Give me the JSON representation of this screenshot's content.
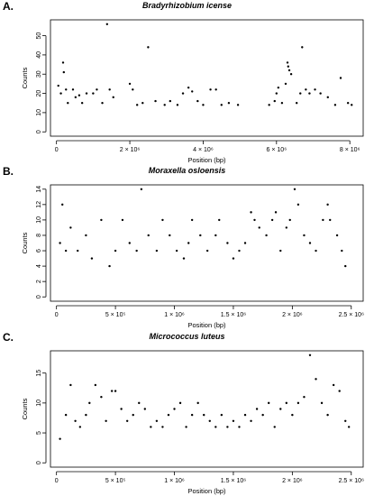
{
  "chart_data": [
    {
      "type": "scatter",
      "panel_label": "A.",
      "title": "Bradyrhizobium icense",
      "xlabel": "Position (bp)",
      "ylabel": "Counts",
      "xlim": [
        0,
        8200000
      ],
      "ylim": [
        0,
        56
      ],
      "x_ticks": [
        0,
        2000000,
        4000000,
        6000000,
        8000000
      ],
      "x_tick_labels": [
        "0",
        "2 × 10⁶",
        "4 × 10⁶",
        "6 × 10⁶",
        "8 × 10⁶"
      ],
      "y_ticks": [
        0,
        10,
        20,
        30,
        40,
        50
      ],
      "y_tick_labels": [
        "0",
        "10",
        "20",
        "30",
        "40",
        "50"
      ],
      "marker_color": "#000000",
      "grid": false,
      "points": [
        [
          50000,
          24
        ],
        [
          120000,
          20
        ],
        [
          180000,
          36
        ],
        [
          200000,
          31
        ],
        [
          260000,
          22
        ],
        [
          310000,
          15
        ],
        [
          450000,
          22
        ],
        [
          520000,
          18
        ],
        [
          620000,
          19
        ],
        [
          700000,
          15
        ],
        [
          820000,
          20
        ],
        [
          1000000,
          20
        ],
        [
          1100000,
          22
        ],
        [
          1250000,
          15
        ],
        [
          1380000,
          56
        ],
        [
          1450000,
          22
        ],
        [
          1550000,
          18
        ],
        [
          2000000,
          25
        ],
        [
          2080000,
          22
        ],
        [
          2200000,
          14
        ],
        [
          2350000,
          15
        ],
        [
          2500000,
          44
        ],
        [
          2700000,
          16
        ],
        [
          2950000,
          14
        ],
        [
          3100000,
          16
        ],
        [
          3300000,
          14
        ],
        [
          3450000,
          20
        ],
        [
          3600000,
          23
        ],
        [
          3700000,
          21
        ],
        [
          3850000,
          16
        ],
        [
          4000000,
          14
        ],
        [
          4200000,
          22
        ],
        [
          4350000,
          22
        ],
        [
          4500000,
          14
        ],
        [
          4700000,
          15
        ],
        [
          4950000,
          14
        ],
        [
          5800000,
          14
        ],
        [
          5950000,
          16
        ],
        [
          6000000,
          20
        ],
        [
          6050000,
          23
        ],
        [
          6150000,
          15
        ],
        [
          6250000,
          25
        ],
        [
          6300000,
          36
        ],
        [
          6320000,
          34
        ],
        [
          6350000,
          32
        ],
        [
          6400000,
          30
        ],
        [
          6550000,
          15
        ],
        [
          6650000,
          20
        ],
        [
          6700000,
          44
        ],
        [
          6800000,
          22
        ],
        [
          6900000,
          20
        ],
        [
          7050000,
          22
        ],
        [
          7200000,
          20
        ],
        [
          7400000,
          18
        ],
        [
          7600000,
          14
        ],
        [
          7750000,
          28
        ],
        [
          7950000,
          15
        ],
        [
          8050000,
          14
        ]
      ]
    },
    {
      "type": "scatter",
      "panel_label": "B.",
      "title": "Moraxella osloensis",
      "xlabel": "Position (bp)",
      "ylabel": "Counts",
      "xlim": [
        0,
        2550000
      ],
      "ylim": [
        0,
        14
      ],
      "x_ticks": [
        0,
        500000,
        1000000,
        1500000,
        2000000,
        2500000
      ],
      "x_tick_labels": [
        "0",
        "5 × 10⁵",
        "1 × 10⁶",
        "1.5 × 10⁶",
        "2 × 10⁶",
        "2.5 × 10⁶"
      ],
      "y_ticks": [
        0,
        2,
        4,
        6,
        8,
        10,
        12,
        14
      ],
      "y_tick_labels": [
        "0",
        "2",
        "4",
        "6",
        "8",
        "10",
        "12",
        "14"
      ],
      "marker_color": "#000000",
      "grid": false,
      "points": [
        [
          30000,
          7
        ],
        [
          50000,
          12
        ],
        [
          80000,
          6
        ],
        [
          120000,
          9
        ],
        [
          180000,
          6
        ],
        [
          250000,
          8
        ],
        [
          300000,
          5
        ],
        [
          380000,
          10
        ],
        [
          450000,
          4
        ],
        [
          500000,
          6
        ],
        [
          560000,
          10
        ],
        [
          620000,
          7
        ],
        [
          680000,
          6
        ],
        [
          720000,
          14
        ],
        [
          780000,
          8
        ],
        [
          850000,
          6
        ],
        [
          900000,
          10
        ],
        [
          960000,
          8
        ],
        [
          1020000,
          6
        ],
        [
          1080000,
          5
        ],
        [
          1120000,
          7
        ],
        [
          1150000,
          10
        ],
        [
          1220000,
          8
        ],
        [
          1280000,
          6
        ],
        [
          1350000,
          8
        ],
        [
          1380000,
          10
        ],
        [
          1450000,
          7
        ],
        [
          1500000,
          5
        ],
        [
          1550000,
          6
        ],
        [
          1600000,
          7
        ],
        [
          1650000,
          11
        ],
        [
          1680000,
          10
        ],
        [
          1720000,
          9
        ],
        [
          1780000,
          8
        ],
        [
          1830000,
          10
        ],
        [
          1860000,
          11
        ],
        [
          1900000,
          6
        ],
        [
          1950000,
          9
        ],
        [
          1980000,
          10
        ],
        [
          2020000,
          14
        ],
        [
          2050000,
          12
        ],
        [
          2100000,
          8
        ],
        [
          2150000,
          7
        ],
        [
          2200000,
          6
        ],
        [
          2260000,
          10
        ],
        [
          2300000,
          12
        ],
        [
          2320000,
          10
        ],
        [
          2380000,
          8
        ],
        [
          2420000,
          6
        ],
        [
          2450000,
          4
        ]
      ]
    },
    {
      "type": "scatter",
      "panel_label": "C.",
      "title": "Micrococcus luteus",
      "xlabel": "Position (bp)",
      "ylabel": "Counts",
      "xlim": [
        0,
        2550000
      ],
      "ylim": [
        0,
        18
      ],
      "x_ticks": [
        0,
        500000,
        1000000,
        1500000,
        2000000,
        2500000
      ],
      "x_tick_labels": [
        "0",
        "5 × 10⁵",
        "1 × 10⁶",
        "1.5 × 10⁶",
        "2 × 10⁶",
        "2.5 × 10⁶"
      ],
      "y_ticks": [
        0,
        5,
        10,
        15
      ],
      "y_tick_labels": [
        "0",
        "5",
        "10",
        "15"
      ],
      "marker_color": "#000000",
      "grid": false,
      "points": [
        [
          30000,
          4
        ],
        [
          80000,
          8
        ],
        [
          120000,
          13
        ],
        [
          160000,
          7
        ],
        [
          200000,
          6
        ],
        [
          250000,
          8
        ],
        [
          280000,
          10
        ],
        [
          330000,
          13
        ],
        [
          380000,
          11
        ],
        [
          420000,
          7
        ],
        [
          470000,
          12
        ],
        [
          500000,
          12
        ],
        [
          550000,
          9
        ],
        [
          600000,
          7
        ],
        [
          650000,
          8
        ],
        [
          700000,
          10
        ],
        [
          750000,
          9
        ],
        [
          800000,
          6
        ],
        [
          850000,
          7
        ],
        [
          900000,
          6
        ],
        [
          950000,
          8
        ],
        [
          1000000,
          9
        ],
        [
          1050000,
          10
        ],
        [
          1100000,
          6
        ],
        [
          1150000,
          8
        ],
        [
          1200000,
          10
        ],
        [
          1250000,
          8
        ],
        [
          1300000,
          7
        ],
        [
          1350000,
          6
        ],
        [
          1400000,
          8
        ],
        [
          1450000,
          6
        ],
        [
          1500000,
          7
        ],
        [
          1550000,
          6
        ],
        [
          1600000,
          8
        ],
        [
          1650000,
          7
        ],
        [
          1700000,
          9
        ],
        [
          1750000,
          8
        ],
        [
          1800000,
          10
        ],
        [
          1850000,
          6
        ],
        [
          1900000,
          9
        ],
        [
          1950000,
          10
        ],
        [
          2000000,
          8
        ],
        [
          2050000,
          10
        ],
        [
          2100000,
          11
        ],
        [
          2150000,
          18
        ],
        [
          2200000,
          14
        ],
        [
          2250000,
          10
        ],
        [
          2300000,
          8
        ],
        [
          2350000,
          13
        ],
        [
          2400000,
          12
        ],
        [
          2450000,
          7
        ],
        [
          2480000,
          6
        ]
      ]
    }
  ]
}
